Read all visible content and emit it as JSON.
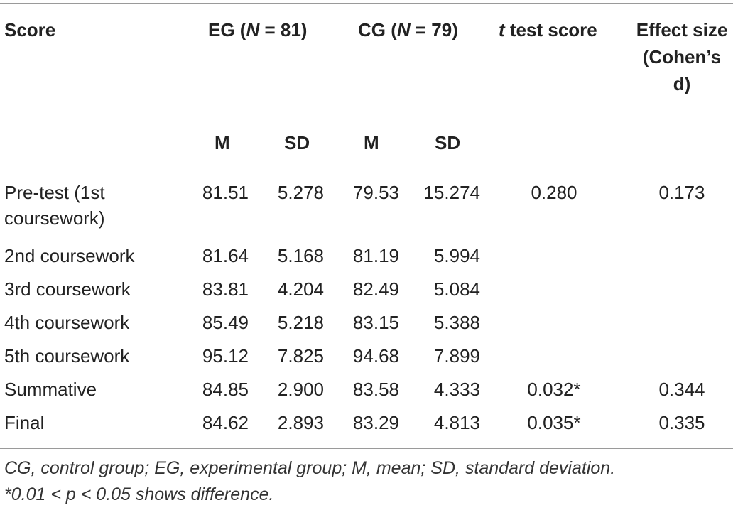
{
  "table": {
    "header": {
      "score": "Score",
      "eg_prefix": "EG (",
      "eg_n": "N",
      "eg_suffix": " = 81)",
      "cg_prefix": "CG (",
      "cg_n": "N",
      "cg_suffix": " = 79)",
      "t_italic": "t",
      "t_rest": " test score",
      "effect_line1": "Effect size",
      "effect_line2": "(Cohen’s",
      "effect_line3": "d)",
      "eg_m": "M",
      "eg_sd": "SD",
      "cg_m": "M",
      "cg_sd": "SD"
    },
    "rows": [
      {
        "label_line1": "Pre-test (1st",
        "label_line2": "coursework)",
        "eg_m": "81.51",
        "eg_sd": "5.278",
        "cg_m": "79.53",
        "cg_sd": "15.274",
        "t": "0.280",
        "d": "0.173"
      },
      {
        "label_line1": "2nd coursework",
        "label_line2": "",
        "eg_m": "81.64",
        "eg_sd": "5.168",
        "cg_m": "81.19",
        "cg_sd": "5.994",
        "t": "",
        "d": ""
      },
      {
        "label_line1": "3rd coursework",
        "label_line2": "",
        "eg_m": "83.81",
        "eg_sd": "4.204",
        "cg_m": "82.49",
        "cg_sd": "5.084",
        "t": "",
        "d": ""
      },
      {
        "label_line1": "4th coursework",
        "label_line2": "",
        "eg_m": "85.49",
        "eg_sd": "5.218",
        "cg_m": "83.15",
        "cg_sd": "5.388",
        "t": "",
        "d": ""
      },
      {
        "label_line1": "5th coursework",
        "label_line2": "",
        "eg_m": "95.12",
        "eg_sd": "7.825",
        "cg_m": "94.68",
        "cg_sd": "7.899",
        "t": "",
        "d": ""
      },
      {
        "label_line1": "Summative",
        "label_line2": "",
        "eg_m": "84.85",
        "eg_sd": "2.900",
        "cg_m": "83.58",
        "cg_sd": "4.333",
        "t": "0.032*",
        "d": "0.344"
      },
      {
        "label_line1": "Final",
        "label_line2": "",
        "eg_m": "84.62",
        "eg_sd": "2.893",
        "cg_m": "83.29",
        "cg_sd": "4.813",
        "t": "0.035*",
        "d": "0.335"
      }
    ]
  },
  "footnote": {
    "line1": "CG, control group; EG, experimental group; M, mean; SD, standard deviation.",
    "line2": "*0.01 < p < 0.05 shows difference."
  }
}
